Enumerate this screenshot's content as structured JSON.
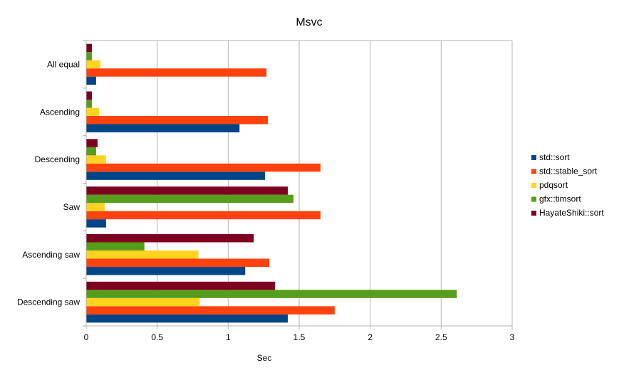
{
  "chart_data": {
    "type": "bar",
    "orientation": "horizontal",
    "title": "Msvc",
    "xlabel": "Sec",
    "ylabel": "",
    "xlim": [
      0,
      3
    ],
    "x_ticks": [
      "0",
      "0.5",
      "1",
      "1.5",
      "2",
      "2.5",
      "3"
    ],
    "x_tick_values": [
      0,
      0.5,
      1,
      1.5,
      2,
      2.5,
      3
    ],
    "grid": "vertical",
    "legend_position": "right",
    "categories": [
      "All equal",
      "Ascending",
      "Descending",
      "Saw",
      "Ascending saw",
      "Descending saw"
    ],
    "series": [
      {
        "name": "std::sort",
        "color": "#004586",
        "values": [
          0.07,
          1.08,
          1.26,
          0.14,
          1.12,
          1.42
        ]
      },
      {
        "name": "std::stable_sort",
        "color": "#ff420e",
        "values": [
          1.27,
          1.28,
          1.65,
          1.65,
          1.29,
          1.75
        ]
      },
      {
        "name": "pdqsort",
        "color": "#ffd320",
        "values": [
          0.1,
          0.09,
          0.14,
          0.13,
          0.79,
          0.8
        ]
      },
      {
        "name": "gfx::timsort",
        "color": "#579d1c",
        "values": [
          0.04,
          0.04,
          0.07,
          1.46,
          0.41,
          2.61
        ]
      },
      {
        "name": "HayateShiki::sort",
        "color": "#7e0021",
        "values": [
          0.04,
          0.04,
          0.08,
          1.42,
          1.18,
          1.33
        ]
      }
    ]
  }
}
